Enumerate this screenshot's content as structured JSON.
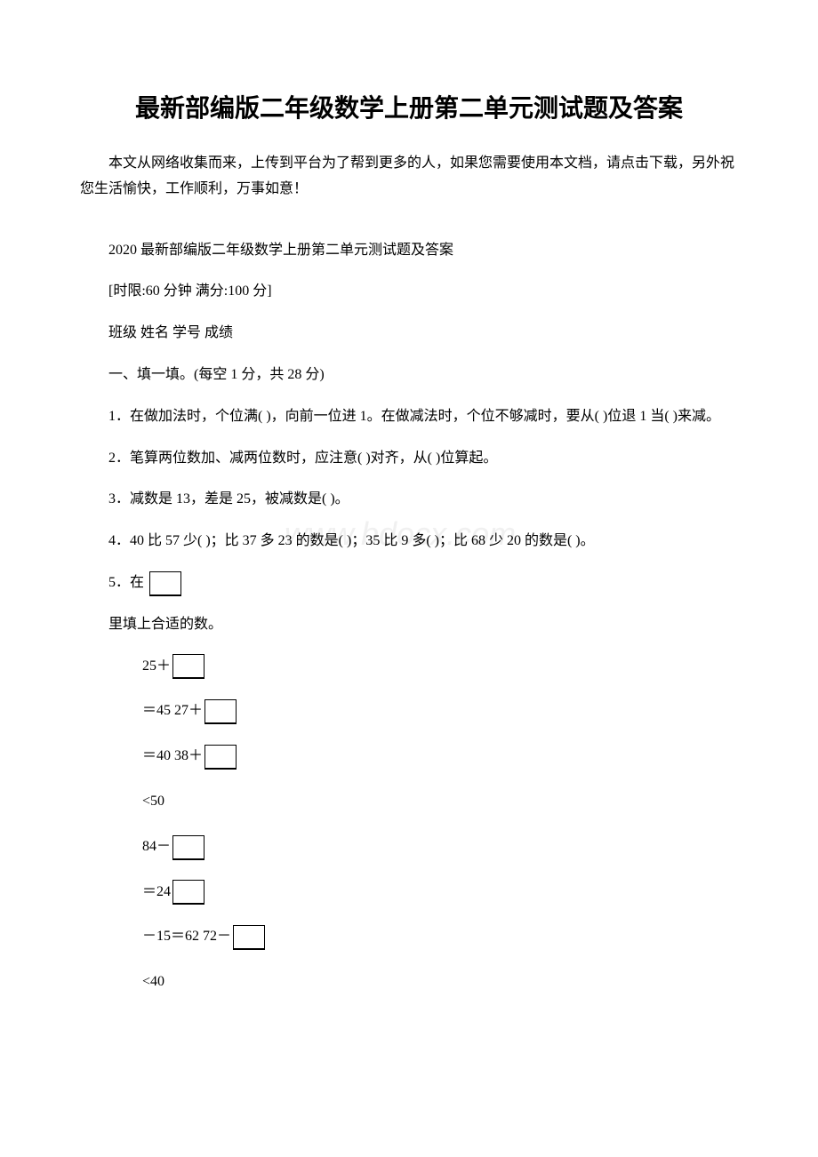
{
  "title": "最新部编版二年级数学上册第二单元测试题及答案",
  "intro": "本文从网络收集而来，上传到平台为了帮到更多的人，如果您需要使用本文档，请点击下载，另外祝您生活愉快，工作顺利，万事如意！",
  "subtitle": "2020 最新部编版二年级数学上册第二单元测试题及答案",
  "limits": "[时限:60 分钟 满分:100 分]",
  "fields": "班级   姓名   学号   成绩",
  "section1_heading": "一、填一填。(每空 1 分，共 28 分)",
  "q1": "1．在做加法时，个位满(  )，向前一位进 1。在做减法时，个位不够减时，要从(  )位退 1 当(  )来减。",
  "q2": "2．笔算两位数加、减两位数时，应注意(  )对齐，从(  )位算起。",
  "q3": "3．减数是 13，差是 25，被减数是(  )。",
  "q4": "4．40 比 57 少(  )；比 37 多 23 的数是(  )；35 比 9 多(  )；比 68 少 20 的数是(  )。",
  "q5_prefix": "5．在",
  "q5_suffix": "里填上合适的数。",
  "eq1_a": "25＋",
  "eq2_a": "＝45 27＋",
  "eq3_a": "＝40  38＋",
  "eq4": "<50",
  "eq5_a": "84－",
  "eq6_a": "＝24 ",
  "eq7_a": "－15＝62 72－",
  "eq8": "<40",
  "watermark": "www.bdocx.com"
}
